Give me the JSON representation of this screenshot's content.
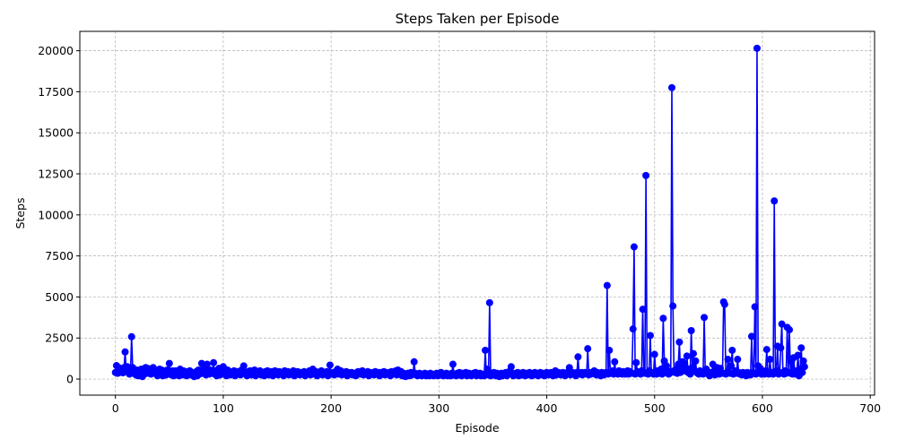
{
  "chart_data": {
    "type": "line",
    "title": "Steps Taken per Episode",
    "xlabel": "Episode",
    "ylabel": "Steps",
    "xlim": [
      -33,
      704
    ],
    "ylim": [
      -980,
      21180
    ],
    "xticks": [
      0,
      100,
      200,
      300,
      400,
      500,
      600,
      700
    ],
    "yticks": [
      0,
      2500,
      5000,
      7500,
      10000,
      12500,
      15000,
      17500,
      20000
    ],
    "xtick_labels": [
      "0",
      "100",
      "200",
      "300",
      "400",
      "500",
      "600",
      "700"
    ],
    "ytick_labels": [
      "0",
      "2500",
      "5000",
      "7500",
      "10000",
      "12500",
      "15000",
      "17500",
      "20000"
    ],
    "grid": true,
    "series": [
      {
        "color": "#0000ff",
        "marker": "circle",
        "values": [
          400,
          820,
          350,
          700,
          400,
          500,
          600,
          380,
          700,
          1650,
          450,
          750,
          500,
          300,
          400,
          2580,
          700,
          350,
          500,
          250,
          550,
          200,
          400,
          300,
          600,
          150,
          450,
          300,
          700,
          500,
          650,
          350,
          450,
          300,
          500,
          700,
          400,
          550,
          300,
          200,
          450,
          600,
          300,
          550,
          200,
          400,
          350,
          250,
          550,
          300,
          950,
          400,
          250,
          500,
          200,
          350,
          500,
          300,
          450,
          200,
          600,
          350,
          250,
          500,
          300,
          400,
          200,
          450,
          350,
          500,
          250,
          400,
          300,
          150,
          350,
          450,
          200,
          550,
          300,
          400,
          950,
          350,
          500,
          700,
          250,
          900,
          400,
          300,
          550,
          350,
          450,
          1000,
          300,
          500,
          200,
          400,
          650,
          250,
          500,
          350,
          750,
          300,
          400,
          200,
          550,
          300,
          450,
          250,
          400,
          300,
          500,
          200,
          350,
          450,
          300,
          400,
          250,
          550,
          350,
          800,
          400,
          300,
          200,
          450,
          350,
          500,
          250,
          400,
          300,
          550,
          200,
          450,
          350,
          300,
          500,
          250,
          400,
          300,
          200,
          450,
          350,
          500,
          250,
          400,
          300,
          450,
          200,
          350,
          500,
          300,
          400,
          250,
          450,
          350,
          300,
          400,
          200,
          500,
          350,
          300,
          450,
          250,
          400,
          350,
          300,
          500,
          200,
          400,
          350,
          450,
          300,
          250,
          400,
          350,
          300,
          450,
          200,
          400,
          350,
          300,
          500,
          250,
          400,
          600,
          350,
          300,
          450,
          200,
          400,
          350,
          300,
          500,
          250,
          400,
          350,
          300,
          450,
          200,
          400,
          850,
          350,
          300,
          400,
          250,
          450,
          350,
          600,
          300,
          400,
          500,
          250,
          400,
          350,
          300,
          450,
          200,
          400,
          350,
          300,
          400,
          250,
          350,
          300,
          200,
          400,
          450,
          350,
          300,
          400,
          500,
          250,
          400,
          350,
          300,
          450,
          200,
          400,
          350,
          300,
          400,
          250,
          450,
          350,
          300,
          400,
          200,
          400,
          350,
          300,
          450,
          250,
          400,
          350,
          300,
          400,
          200,
          450,
          350,
          300,
          400,
          500,
          250,
          550,
          400,
          300,
          450,
          200,
          350,
          300,
          150,
          250,
          350,
          300,
          200,
          400,
          250,
          300,
          1050,
          350,
          300,
          200,
          250,
          350,
          300,
          200,
          250,
          300,
          350,
          200,
          250,
          300,
          200,
          350,
          250,
          300,
          200,
          250,
          300,
          350,
          200,
          300,
          250,
          400,
          350,
          200,
          300,
          250,
          350,
          200,
          300,
          250,
          200,
          350,
          900,
          300,
          250,
          200,
          350,
          300,
          400,
          250,
          200,
          350,
          300,
          250,
          400,
          200,
          300,
          350,
          250,
          200,
          300,
          350,
          250,
          400,
          200,
          300,
          250,
          350,
          200,
          300,
          250,
          200,
          1750,
          300,
          600,
          250,
          4650,
          200,
          350,
          300,
          400,
          250,
          200,
          350,
          300,
          150,
          250,
          350,
          200,
          300,
          250,
          400,
          200,
          300,
          350,
          500,
          750,
          300,
          200,
          250,
          350,
          300,
          400,
          200,
          350,
          300,
          250,
          400,
          300,
          200,
          350,
          250,
          300,
          400,
          350,
          200,
          300,
          250,
          400,
          350,
          300,
          200,
          350,
          400,
          300,
          250,
          350,
          200,
          300,
          400,
          350,
          250,
          300,
          400,
          350,
          200,
          300,
          500,
          250,
          350,
          400,
          300,
          250,
          350,
          400,
          300,
          200,
          350,
          400,
          300,
          700,
          250,
          350,
          400,
          300,
          350,
          200,
          400,
          1350,
          300,
          350,
          400,
          250,
          300,
          400,
          350,
          300,
          1850,
          250,
          400,
          300,
          350,
          400,
          500,
          300,
          250,
          400,
          300,
          350,
          200,
          400,
          300,
          250,
          350,
          400,
          5700,
          300,
          1750,
          400,
          350,
          500,
          300,
          1050,
          400,
          350,
          300,
          500,
          400,
          350,
          300,
          450,
          400,
          300,
          350,
          500,
          300,
          450,
          400,
          350,
          3050,
          8050,
          300,
          1000,
          450,
          350,
          400,
          300,
          500,
          4250,
          400,
          350,
          12400,
          400,
          300,
          500,
          2650,
          400,
          350,
          300,
          1500,
          450,
          300,
          500,
          400,
          350,
          600,
          300,
          3700,
          1100,
          400,
          800,
          500,
          300,
          350,
          400,
          17750,
          4450,
          500,
          400,
          600,
          350,
          900,
          2250,
          400,
          700,
          1050,
          500,
          800,
          600,
          1400,
          400,
          600,
          300,
          2950,
          700,
          1550,
          500,
          1100,
          400,
          350,
          300,
          500,
          400,
          350,
          300,
          3750,
          400,
          600,
          350,
          300,
          200,
          400,
          350,
          900,
          300,
          250,
          400,
          700,
          350,
          300,
          650,
          400,
          350,
          4700,
          4550,
          300,
          400,
          1200,
          400,
          350,
          800,
          1750,
          300,
          400,
          500,
          350,
          1200,
          400,
          300,
          350,
          250,
          400,
          300,
          350,
          200,
          400,
          300,
          350,
          250,
          2600,
          400,
          350,
          4400,
          300,
          20150,
          800,
          400,
          650,
          300,
          350,
          400,
          300,
          500,
          1800,
          400,
          300,
          1200,
          350,
          400,
          300,
          10850,
          400,
          500,
          2000,
          300,
          400,
          1900,
          3350,
          400,
          300,
          500,
          350,
          3150,
          400,
          3000,
          350,
          1100,
          300,
          1300,
          400,
          300,
          500,
          1450,
          200,
          600,
          1900,
          400,
          1100,
          750
        ]
      }
    ]
  }
}
